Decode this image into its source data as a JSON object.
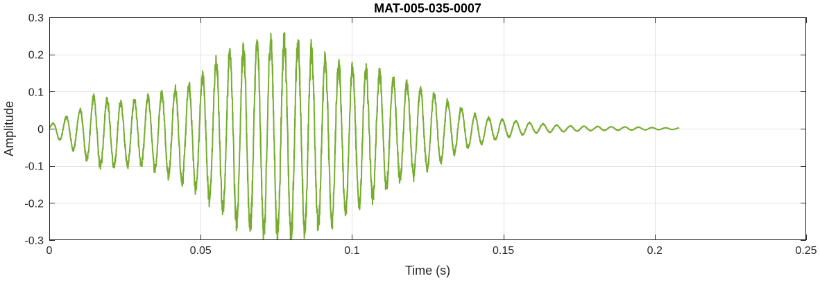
{
  "chart_data": {
    "type": "line",
    "title": "MAT-005-035-0007",
    "xlabel": "Time (s)",
    "ylabel": "Amplitude",
    "xlim": [
      0,
      0.25
    ],
    "ylim": [
      -0.3,
      0.3
    ],
    "x_ticks": [
      0,
      0.05,
      0.1,
      0.15,
      0.2,
      0.25
    ],
    "x_tick_labels": [
      "0",
      "0.05",
      "0.1",
      "0.15",
      "0.2",
      "0.25"
    ],
    "y_ticks": [
      -0.3,
      -0.2,
      -0.1,
      0,
      0.1,
      0.2,
      0.3
    ],
    "y_tick_labels": [
      "-0.3",
      "-0.2",
      "-0.1",
      "0",
      "0.1",
      "0.2",
      "0.3"
    ],
    "grid": true,
    "series": [
      {
        "color": "#77AC30",
        "signal_end": 0.208,
        "envelope": {
          "x": [
            0,
            0.005,
            0.01,
            0.015,
            0.02,
            0.025,
            0.03,
            0.035,
            0.04,
            0.045,
            0.05,
            0.055,
            0.06,
            0.065,
            0.07,
            0.075,
            0.08,
            0.085,
            0.09,
            0.095,
            0.1,
            0.105,
            0.11,
            0.115,
            0.12,
            0.125,
            0.13,
            0.135,
            0.14,
            0.145,
            0.15,
            0.155,
            0.16,
            0.17,
            0.18,
            0.19,
            0.2,
            0.208
          ],
          "upper": [
            0.01,
            0.03,
            0.05,
            0.09,
            0.08,
            0.07,
            0.085,
            0.09,
            0.11,
            0.11,
            0.14,
            0.18,
            0.21,
            0.22,
            0.24,
            0.25,
            0.24,
            0.23,
            0.2,
            0.18,
            0.17,
            0.16,
            0.15,
            0.13,
            0.12,
            0.1,
            0.08,
            0.06,
            0.04,
            0.03,
            0.025,
            0.02,
            0.015,
            0.008,
            0.006,
            0.005,
            0.003,
            0.002
          ],
          "lower": [
            -0.01,
            -0.04,
            -0.07,
            -0.1,
            -0.11,
            -0.1,
            -0.1,
            -0.11,
            -0.13,
            -0.15,
            -0.17,
            -0.21,
            -0.24,
            -0.27,
            -0.28,
            -0.29,
            -0.3,
            -0.28,
            -0.27,
            -0.25,
            -0.22,
            -0.2,
            -0.17,
            -0.14,
            -0.13,
            -0.11,
            -0.09,
            -0.06,
            -0.05,
            -0.035,
            -0.025,
            -0.018,
            -0.012,
            -0.008,
            -0.005,
            -0.004,
            -0.003,
            -0.002
          ]
        },
        "cycle_period": 0.0045
      }
    ]
  }
}
